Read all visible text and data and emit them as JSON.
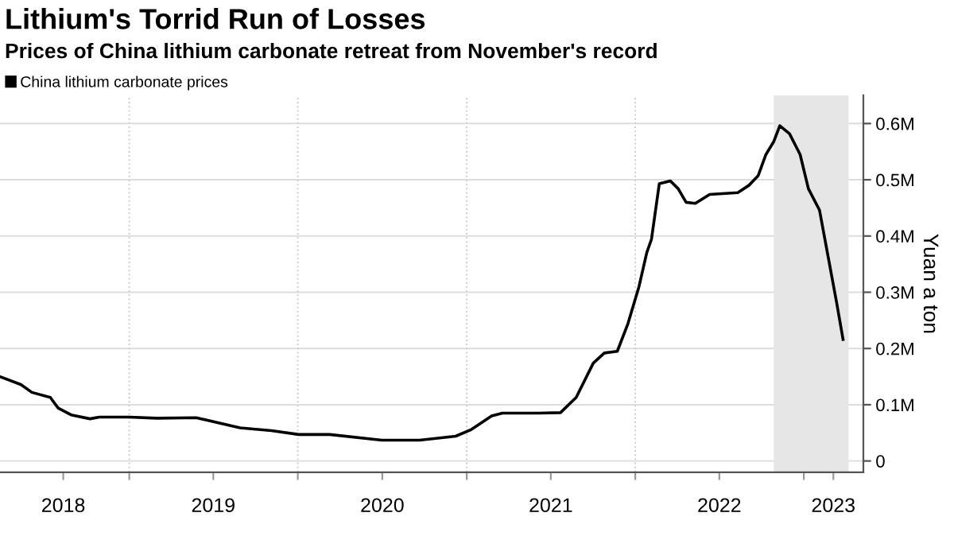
{
  "chart_data": {
    "type": "line",
    "title": "Lithium's Torrid Run of Losses",
    "subtitle": "Prices of China lithium carbonate retreat from November's record",
    "y2label": "Yuan a ton",
    "x": [
      "2018-03-27",
      "2018-05-11",
      "2018-06-04",
      "2018-07-14",
      "2018-07-31",
      "2018-08-28",
      "2018-10-08",
      "2018-10-28",
      "2019-01-01",
      "2019-03-02",
      "2019-05-26",
      "2019-08-29",
      "2019-11-05",
      "2020-01-03",
      "2020-03-10",
      "2020-07-01",
      "2020-09-21",
      "2020-12-08",
      "2021-01-11",
      "2021-02-24",
      "2021-03-19",
      "2021-06-06",
      "2021-07-23",
      "2021-08-26",
      "2021-10-02",
      "2021-10-26",
      "2021-11-23",
      "2021-12-16",
      "2022-01-09",
      "2022-01-26",
      "2022-02-05",
      "2022-02-22",
      "2022-03-18",
      "2022-04-04",
      "2022-04-21",
      "2022-05-11",
      "2022-06-11",
      "2022-08-11",
      "2022-09-04",
      "2022-09-24",
      "2022-10-11",
      "2022-10-28",
      "2022-11-10",
      "2022-12-01",
      "2022-12-24",
      "2023-01-11",
      "2023-02-04",
      "2023-02-20",
      "2023-03-13",
      "2023-03-27"
    ],
    "series": [
      {
        "name": "China lithium carbonate prices",
        "color": "#000000",
        "axis": "y2",
        "values": [
          150000,
          136000,
          122000,
          113000,
          94000,
          82000,
          75000,
          78000,
          78000,
          76000,
          77000,
          59000,
          54000,
          47000,
          47000,
          37000,
          37000,
          44000,
          56000,
          80000,
          85000,
          85000,
          86000,
          113000,
          174000,
          192000,
          195000,
          244000,
          310000,
          371000,
          394000,
          493000,
          498000,
          484000,
          460000,
          458000,
          474000,
          477000,
          490000,
          507000,
          545000,
          568000,
          596000,
          582000,
          545000,
          484000,
          446000,
          375000,
          282000,
          216000
        ]
      }
    ],
    "xlim": [
      "2018-03-27",
      "2023-05-10"
    ],
    "xticks": [
      {
        "value": "2019-01-01",
        "label": null
      },
      {
        "value": "2020-01-01",
        "label": null
      },
      {
        "value": "2021-01-01",
        "label": null
      },
      {
        "value": "2022-01-01",
        "label": null
      },
      {
        "value": "2023-01-01",
        "label": null
      },
      {
        "value": "2018-08-11",
        "label": "2018"
      },
      {
        "value": "2019-07-02",
        "label": "2019"
      },
      {
        "value": "2020-07-02",
        "label": "2020"
      },
      {
        "value": "2021-07-02",
        "label": "2021"
      },
      {
        "value": "2022-07-02",
        "label": "2022"
      },
      {
        "value": "2023-03-06",
        "label": "2023"
      }
    ],
    "y2lim": [
      -20000,
      650000
    ],
    "y2ticks": [
      0,
      {
        "value": 100000,
        "label": "0.1M"
      },
      {
        "value": 200000,
        "label": "0.2M"
      },
      {
        "value": 300000,
        "label": "0.3M"
      },
      {
        "value": 400000,
        "label": "0.4M"
      },
      {
        "value": 500000,
        "label": "0.5M"
      },
      {
        "value": 600000,
        "label": "0.6M"
      }
    ],
    "bands": [
      {
        "axis": "x",
        "from": "2022-10-28",
        "to": "2023-04-08",
        "color": "#e6e6e6"
      }
    ],
    "grid": true,
    "legend": "top left",
    "line_style": "solid",
    "marker": "none"
  }
}
